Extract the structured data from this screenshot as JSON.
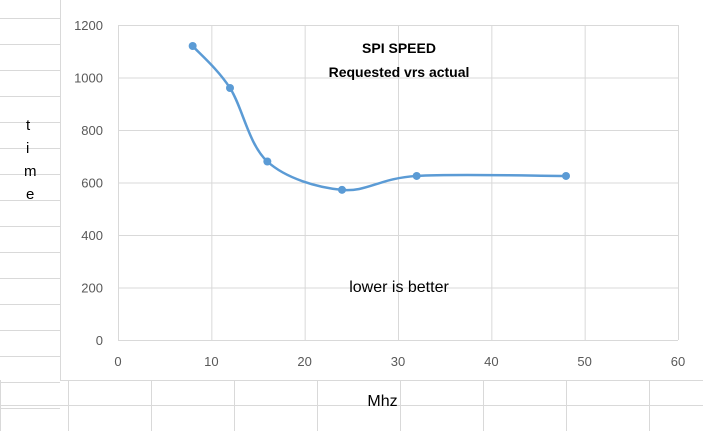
{
  "chart_data": {
    "type": "line",
    "title": "SPI SPEED",
    "subtitle": "Requested vrs actual",
    "annotation": "lower is better",
    "xlabel": "Mhz",
    "ylabel": "time",
    "xlim": [
      0,
      60
    ],
    "ylim": [
      0,
      1200
    ],
    "xticks": [
      0,
      10,
      20,
      30,
      40,
      50,
      60
    ],
    "yticks": [
      0,
      200,
      400,
      600,
      800,
      1000,
      1200
    ],
    "grid": true,
    "smooth": true,
    "series_color": "#5b9bd5",
    "x": [
      8,
      12,
      16,
      24,
      32,
      48
    ],
    "y": [
      1120,
      960,
      680,
      572,
      625,
      625
    ]
  }
}
